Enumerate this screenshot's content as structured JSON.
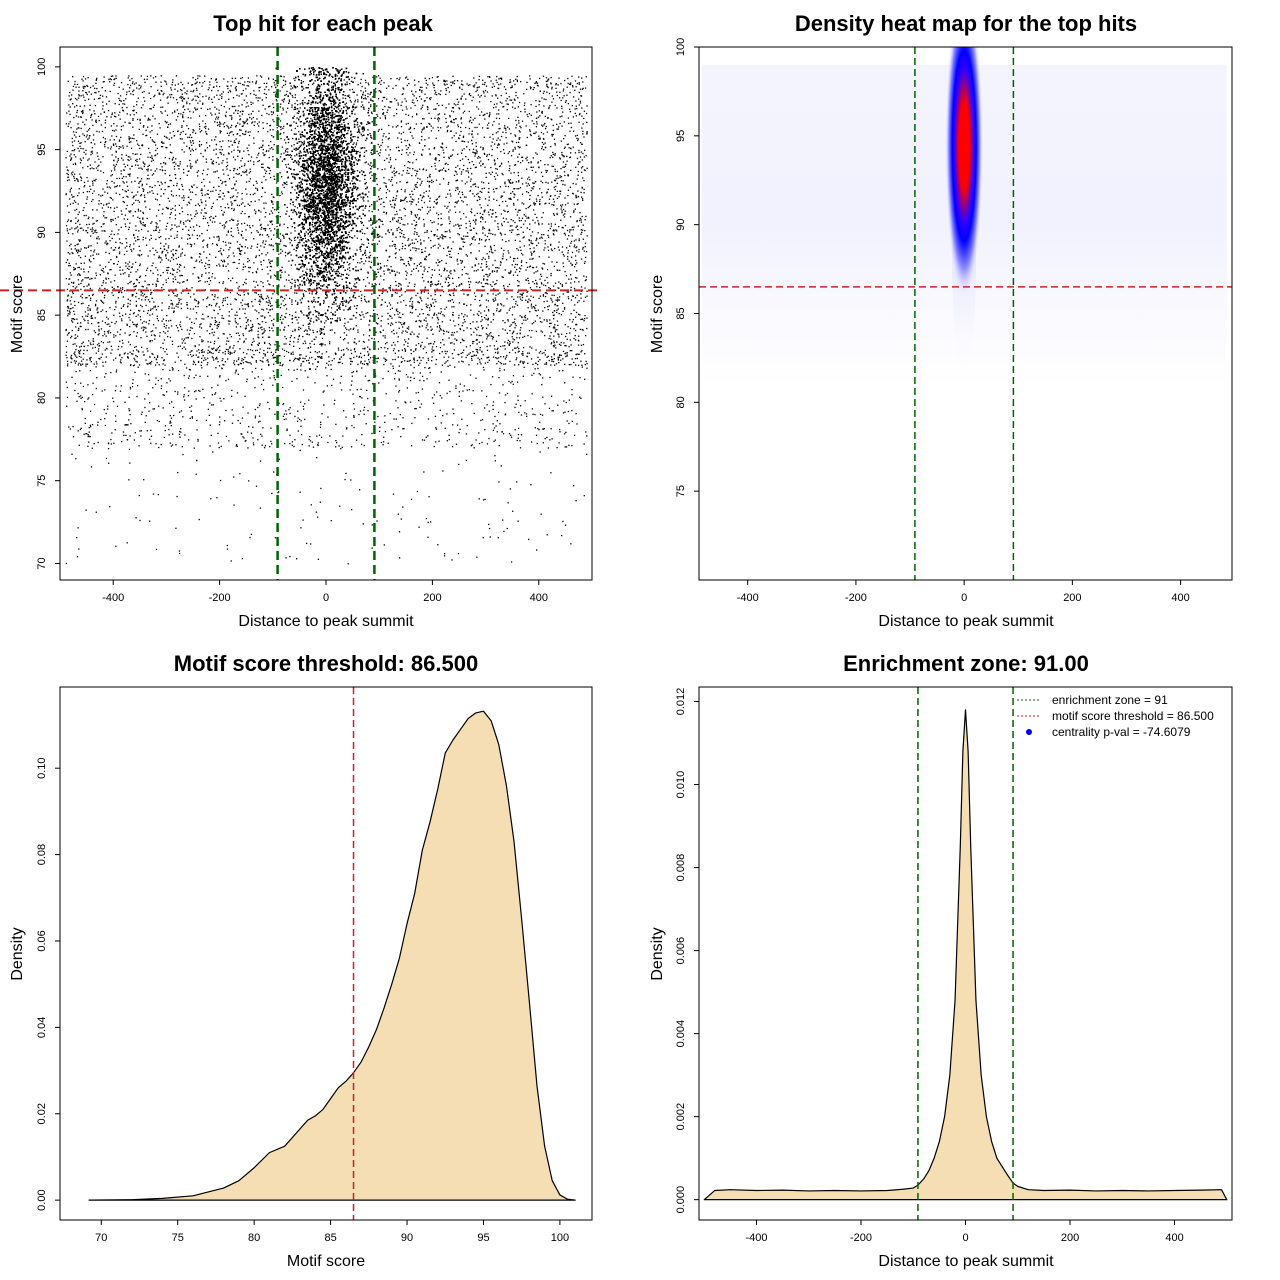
{
  "colors": {
    "threshold": "#cc2222",
    "zone": "#006400",
    "fill": "#f5deb3",
    "points": "#000000",
    "heat_low": "#ffffff",
    "heat_mid": "#0000ff",
    "heat_high": "#ff0000",
    "legend_dot": "#0000ff"
  },
  "chart_data": [
    {
      "type": "scatter",
      "title": "Top hit for each peak",
      "xlabel": "Distance to peak summit",
      "ylabel": "Motif score",
      "xlim": [
        -500,
        500
      ],
      "ylim": [
        69,
        101.2
      ],
      "xticks": [
        -400,
        -200,
        0,
        200,
        400
      ],
      "yticks": [
        70,
        75,
        80,
        85,
        90,
        95,
        100
      ],
      "threshold": 86.5,
      "zone": [
        -91,
        91
      ],
      "point_cloud": {
        "background": {
          "x_range": [
            -490,
            490
          ],
          "y_mode": 90,
          "y_min": 70,
          "y_max": 99.5
        },
        "central": {
          "x_center": 0,
          "x_sd": 28,
          "y_center": 93,
          "y_sd": 3.3,
          "y_max": 100
        }
      }
    },
    {
      "type": "heatmap",
      "title": "Density heat map for the top hits",
      "xlabel": "Distance to peak summit",
      "ylabel": "Motif score",
      "xlim": [
        -490,
        495
      ],
      "ylim": [
        70,
        100
      ],
      "xticks": [
        -400,
        -200,
        0,
        200,
        400
      ],
      "yticks": [
        75,
        80,
        85,
        90,
        95,
        100
      ],
      "threshold": 86.5,
      "zone": [
        -91,
        91
      ],
      "hotspot": {
        "x": 0,
        "y": 95,
        "x_sd": 17,
        "y_sd": 2.7
      }
    },
    {
      "type": "area",
      "title": "Motif score threshold: 86.500",
      "xlabel": "Motif score",
      "ylabel": "Density",
      "xlim": [
        67.3,
        102.1
      ],
      "ylim": [
        -0.0046,
        0.1188
      ],
      "xticks": [
        70,
        75,
        80,
        85,
        90,
        95,
        100
      ],
      "yticks": [
        0.0,
        0.02,
        0.04,
        0.06,
        0.08,
        0.1
      ],
      "ytick_labels": [
        "0.00",
        "0.02",
        "0.04",
        "0.06",
        "0.08",
        "0.10"
      ],
      "threshold": 86.5,
      "x": [
        69.2,
        72,
        74,
        76,
        78,
        79,
        80,
        81,
        82,
        82.5,
        83,
        83.5,
        84,
        84.5,
        85,
        85.5,
        86,
        86.5,
        87,
        87.5,
        88,
        88.5,
        89,
        89.5,
        90,
        90.5,
        91,
        91.5,
        92,
        92.5,
        93,
        93.5,
        94,
        94.5,
        95,
        95.5,
        96,
        96.5,
        97,
        97.5,
        98,
        98.5,
        99,
        99.5,
        100,
        100.5,
        101
      ],
      "y": [
        0.0,
        0.0001,
        0.0004,
        0.001,
        0.0028,
        0.0045,
        0.0075,
        0.011,
        0.0125,
        0.0145,
        0.0165,
        0.0185,
        0.0195,
        0.021,
        0.0235,
        0.026,
        0.0275,
        0.0295,
        0.032,
        0.0355,
        0.0395,
        0.0445,
        0.05,
        0.056,
        0.064,
        0.071,
        0.081,
        0.0875,
        0.095,
        0.1035,
        0.1065,
        0.109,
        0.1115,
        0.1128,
        0.1132,
        0.111,
        0.1055,
        0.096,
        0.083,
        0.065,
        0.046,
        0.0265,
        0.0125,
        0.0045,
        0.0012,
        0.0002,
        0.0
      ]
    },
    {
      "type": "area",
      "title": "Enrichment zone: 91.00",
      "xlabel": "Distance to peak summit",
      "ylabel": "Density",
      "xlim": [
        -510,
        510
      ],
      "ylim": [
        -0.00049,
        0.01235
      ],
      "xticks": [
        -400,
        -200,
        0,
        200,
        400
      ],
      "yticks": [
        0.0,
        0.002,
        0.004,
        0.006,
        0.008,
        0.01,
        0.012
      ],
      "ytick_labels": [
        "0.000",
        "0.002",
        "0.004",
        "0.006",
        "0.008",
        "0.010",
        "0.012"
      ],
      "zone": [
        -91,
        91
      ],
      "x": [
        -500,
        -480,
        -450,
        -400,
        -350,
        -300,
        -250,
        -200,
        -150,
        -120,
        -100,
        -91,
        -80,
        -70,
        -60,
        -50,
        -40,
        -30,
        -20,
        -10,
        -5,
        0,
        5,
        10,
        20,
        30,
        40,
        50,
        60,
        70,
        80,
        91,
        100,
        120,
        150,
        200,
        250,
        300,
        350,
        400,
        450,
        490,
        500
      ],
      "y": [
        0.0,
        0.00022,
        0.00024,
        0.00022,
        0.00023,
        0.00021,
        0.00022,
        0.00021,
        0.00022,
        0.00025,
        0.00028,
        0.00035,
        0.0005,
        0.0007,
        0.001,
        0.0014,
        0.002,
        0.003,
        0.0048,
        0.0085,
        0.0108,
        0.0118,
        0.0108,
        0.0085,
        0.0048,
        0.003,
        0.002,
        0.0014,
        0.001,
        0.0008,
        0.0006,
        0.0004,
        0.00032,
        0.00024,
        0.00022,
        0.00023,
        0.00021,
        0.00022,
        0.00021,
        0.00022,
        0.00023,
        0.00024,
        0.0
      ],
      "legend": [
        {
          "label": "enrichment zone = 91",
          "kind": "line",
          "color": "#006400"
        },
        {
          "label": "motif score threshold = 86.500",
          "kind": "line",
          "color": "#cc2222"
        },
        {
          "label": "centrality p-val = -74.6079",
          "kind": "dot",
          "color": "#0000ff"
        }
      ],
      "legend_position": "top-right"
    }
  ]
}
